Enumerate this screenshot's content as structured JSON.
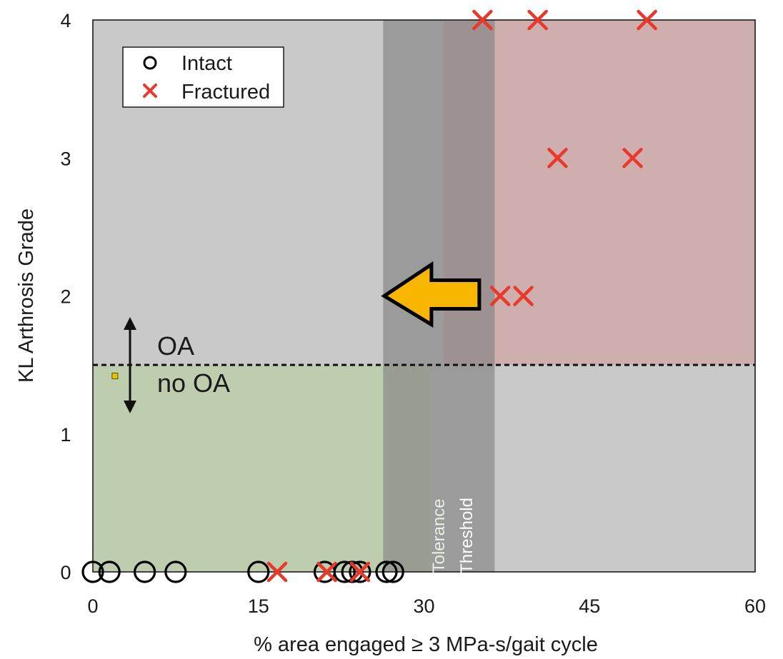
{
  "chart_data": {
    "type": "scatter",
    "xlabel": "% area engaged ≥ 3 MPa-s/gait cycle",
    "ylabel": "KL Arthrosis Grade",
    "xlim": [
      0,
      60
    ],
    "ylim": [
      0,
      4
    ],
    "x_ticks": [
      0,
      15,
      30,
      45,
      60
    ],
    "y_ticks": [
      0,
      1,
      2,
      3,
      4
    ],
    "grid": false,
    "legend_position": "top-left",
    "series": [
      {
        "name": "Intact",
        "marker": "circle",
        "color": "#000000",
        "points": [
          {
            "x": 0,
            "y": 0
          },
          {
            "x": 1.5,
            "y": 0
          },
          {
            "x": 4.7,
            "y": 0
          },
          {
            "x": 7.5,
            "y": 0
          },
          {
            "x": 15,
            "y": 0
          },
          {
            "x": 21,
            "y": 0
          },
          {
            "x": 22.8,
            "y": 0
          },
          {
            "x": 23.5,
            "y": 0
          },
          {
            "x": 24.2,
            "y": 0
          },
          {
            "x": 26.6,
            "y": 0
          },
          {
            "x": 27.2,
            "y": 0
          }
        ]
      },
      {
        "name": "Fractured",
        "marker": "x",
        "color": "#e8392b",
        "points": [
          {
            "x": 16.7,
            "y": 0
          },
          {
            "x": 21.2,
            "y": 0
          },
          {
            "x": 24.2,
            "y": 0
          },
          {
            "x": 36.9,
            "y": 2
          },
          {
            "x": 39.0,
            "y": 2
          },
          {
            "x": 42.1,
            "y": 3
          },
          {
            "x": 48.9,
            "y": 3
          },
          {
            "x": 35.3,
            "y": 4
          },
          {
            "x": 40.3,
            "y": 4
          },
          {
            "x": 50.2,
            "y": 4
          }
        ]
      }
    ],
    "regions": [
      {
        "name": "no-oa-zone",
        "x": [
          0,
          30.5
        ],
        "y": [
          0,
          1.5
        ],
        "color": "#b8cfa4",
        "opacity": 0.72
      },
      {
        "name": "oa-fracture-zone",
        "x": [
          31.8,
          60
        ],
        "y": [
          1.5,
          4
        ],
        "color": "#d49e9e",
        "opacity": 0.62
      },
      {
        "name": "tolerance-band",
        "x": [
          26.3,
          36.4
        ],
        "y": [
          0,
          4
        ],
        "color": "#7f7f7f",
        "opacity": 0.62
      }
    ],
    "oa_threshold_y": 1.5,
    "annotations": {
      "threshold_label_line1": "Tolerance",
      "threshold_label_line2": "Threshold",
      "oa_label": "OA",
      "no_oa_label": "no OA"
    },
    "arrow": {
      "tip": {
        "x": 26.4,
        "y": 2
      },
      "color": "#f8b600"
    },
    "small_marker": {
      "x": 2.0,
      "y": 1.42,
      "color": "#e8c400"
    }
  }
}
